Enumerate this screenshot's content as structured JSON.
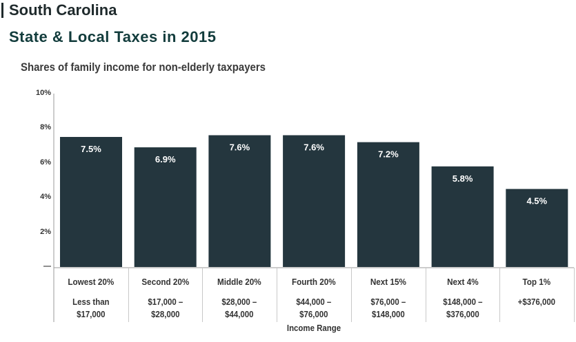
{
  "header": {
    "state": "South Carolina",
    "title": "State & Local Taxes in 2015",
    "subtitle": "Shares of family income for non-elderly taxpayers"
  },
  "chart_data": {
    "type": "bar",
    "title": "State & Local Taxes in 2015",
    "subtitle": "Shares of family income for non-elderly taxpayers",
    "xlabel": "Income Range",
    "ylabel": "",
    "ylim": [
      0,
      10
    ],
    "yticks": [
      "—",
      "2%",
      "4%",
      "6%",
      "8%",
      "10%"
    ],
    "categories": [
      "Lowest 20%",
      "Second 20%",
      "Middle 20%",
      "Fourth 20%",
      "Next 15%",
      "Next 4%",
      "Top 1%"
    ],
    "ranges": [
      "Less than $17,000",
      "$17,000 – $28,000",
      "$28,000 – $44,000",
      "$44,000 – $76,000",
      "$76,000 – $148,000",
      "$148,000 – $376,000",
      "+$376,000"
    ],
    "range_lines": [
      [
        "Less than $17,000"
      ],
      [
        "$17,000 – $28,000"
      ],
      [
        "$28,000 – $44,000"
      ],
      [
        "$44,000 – $76,000"
      ],
      [
        "$76,000 –",
        "$148,000"
      ],
      [
        "$148,000 –",
        "$376,000"
      ],
      [
        "+$376,000"
      ]
    ],
    "values": [
      7.5,
      6.9,
      7.6,
      7.6,
      7.2,
      5.8,
      4.5
    ],
    "value_labels": [
      "7.5%",
      "6.9%",
      "7.6%",
      "7.6%",
      "7.2%",
      "5.8%",
      "4.5%"
    ],
    "grid": false,
    "colors": {
      "bar": "#24363e",
      "label": "#ffffff",
      "axis": "#9a9a9a"
    }
  }
}
